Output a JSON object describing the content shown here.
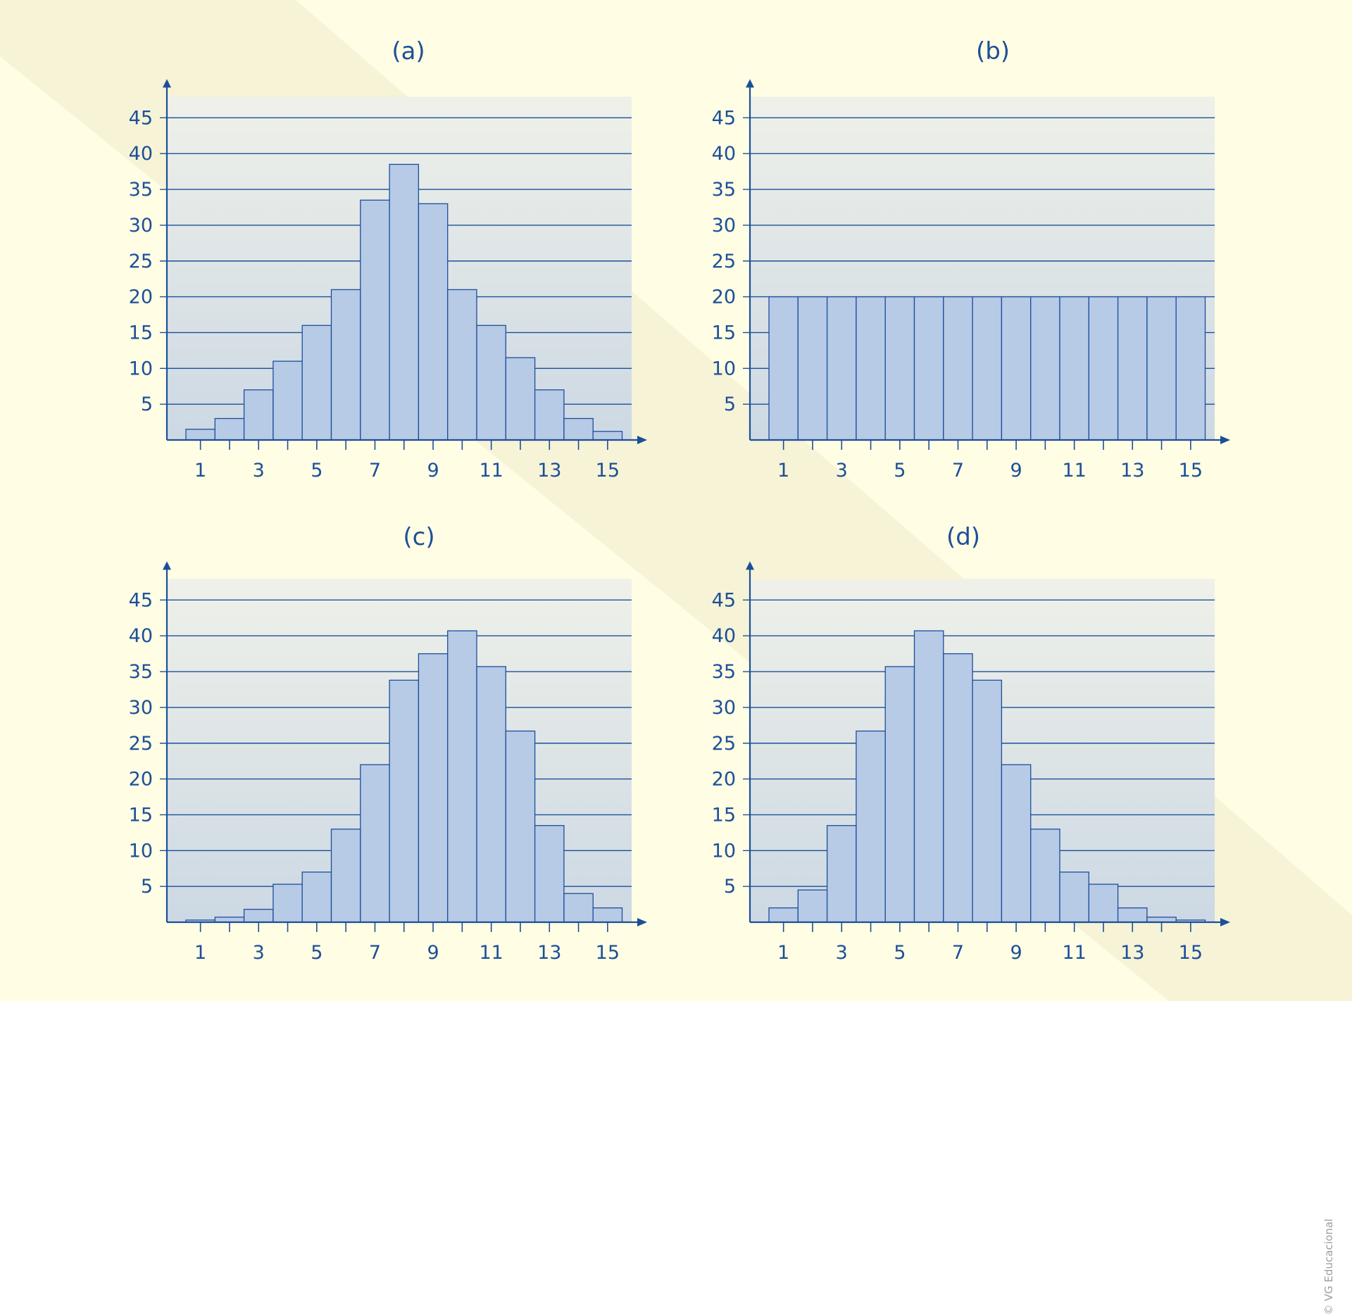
{
  "credit": "© VG Educacional",
  "colors": {
    "background_light": "#fffde4",
    "background_band": "#f6f3d6",
    "plot_top": "#eff1e9",
    "plot_bottom": "#ccd8e4",
    "bar_fill": "#b7cae6",
    "bar_stroke": "#1c4f99",
    "axis": "#1c4f99",
    "text": "#1c4f99"
  },
  "chart_data": [
    {
      "type": "bar",
      "title": "(a)",
      "categories": [
        1,
        2,
        3,
        4,
        5,
        6,
        7,
        8,
        9,
        10,
        11,
        12,
        13,
        14,
        15
      ],
      "values": [
        1.5,
        3,
        7,
        11,
        16,
        21,
        33.5,
        38.5,
        33,
        21,
        16,
        11.5,
        7,
        3,
        1.2
      ],
      "x_tick_labels": [
        "1",
        "3",
        "5",
        "7",
        "9",
        "11",
        "13",
        "15"
      ],
      "y_tick_labels": [
        "5",
        "10",
        "15",
        "20",
        "25",
        "30",
        "35",
        "40",
        "45"
      ],
      "ylim": [
        0,
        50
      ],
      "grid": true
    },
    {
      "type": "bar",
      "title": "(b)",
      "categories": [
        1,
        2,
        3,
        4,
        5,
        6,
        7,
        8,
        9,
        10,
        11,
        12,
        13,
        14,
        15
      ],
      "values": [
        20,
        20,
        20,
        20,
        20,
        20,
        20,
        20,
        20,
        20,
        20,
        20,
        20,
        20,
        20
      ],
      "x_tick_labels": [
        "1",
        "3",
        "5",
        "7",
        "9",
        "11",
        "13",
        "15"
      ],
      "y_tick_labels": [
        "5",
        "10",
        "15",
        "20",
        "25",
        "30",
        "35",
        "40",
        "45"
      ],
      "ylim": [
        0,
        50
      ],
      "grid": true
    },
    {
      "type": "bar",
      "title": "(c)",
      "categories": [
        1,
        2,
        3,
        4,
        5,
        6,
        7,
        8,
        9,
        10,
        11,
        12,
        13,
        14,
        15
      ],
      "values": [
        0.3,
        0.7,
        1.8,
        5.3,
        7,
        13,
        22,
        33.8,
        37.5,
        40.7,
        35.7,
        26.7,
        13.5,
        4,
        2
      ],
      "x_tick_labels": [
        "1",
        "3",
        "5",
        "7",
        "9",
        "11",
        "13",
        "15"
      ],
      "y_tick_labels": [
        "5",
        "10",
        "15",
        "20",
        "25",
        "30",
        "35",
        "40",
        "45"
      ],
      "ylim": [
        0,
        50
      ],
      "grid": true
    },
    {
      "type": "bar",
      "title": "(d)",
      "categories": [
        1,
        2,
        3,
        4,
        5,
        6,
        7,
        8,
        9,
        10,
        11,
        12,
        13,
        14,
        15
      ],
      "values": [
        2,
        4.5,
        13.5,
        26.7,
        35.7,
        40.7,
        37.5,
        33.8,
        22,
        13,
        7,
        5.3,
        2,
        0.7,
        0.3
      ],
      "x_tick_labels": [
        "1",
        "3",
        "5",
        "7",
        "9",
        "11",
        "13",
        "15"
      ],
      "y_tick_labels": [
        "5",
        "10",
        "15",
        "20",
        "25",
        "30",
        "35",
        "40",
        "45"
      ],
      "ylim": [
        0,
        50
      ],
      "grid": true
    }
  ]
}
